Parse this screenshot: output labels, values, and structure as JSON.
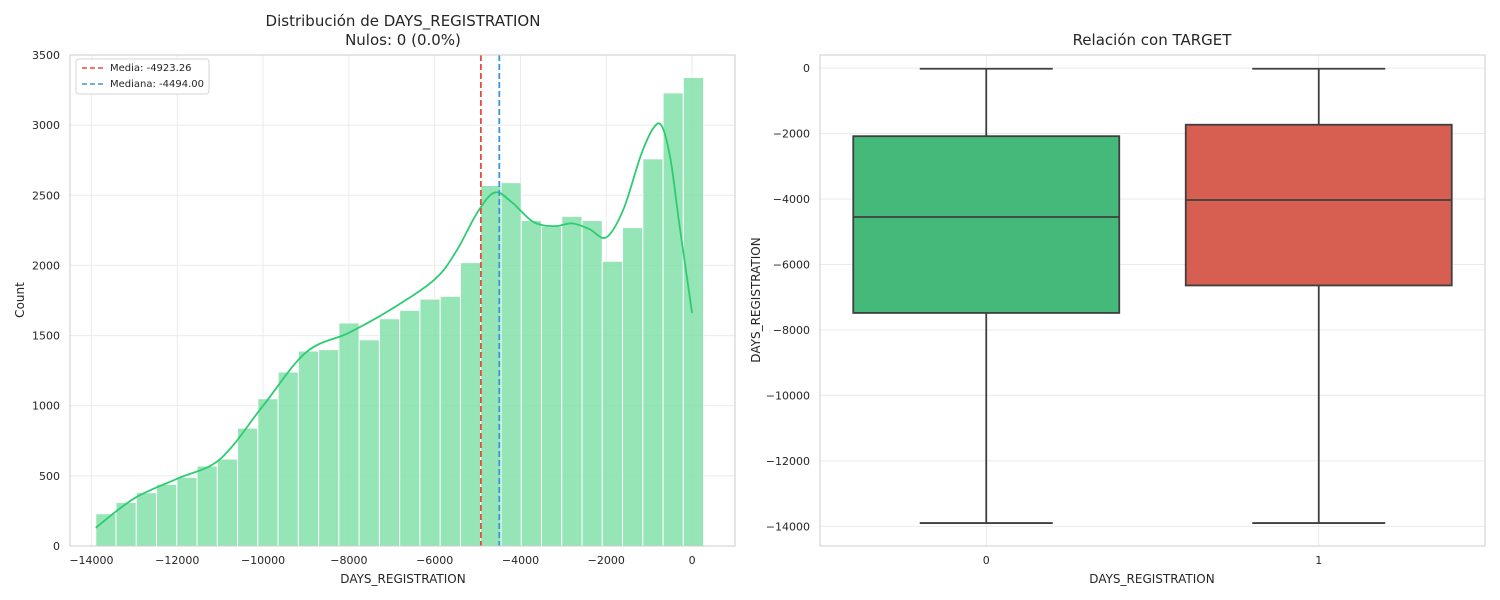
{
  "chart_data": [
    {
      "type": "histogram",
      "title": "Distribución de DAYS_REGISTRATION",
      "subtitle": "Nulos: 0 (0.0%)",
      "xlabel": "DAYS_REGISTRATION",
      "ylabel": "Count",
      "xlim": [
        -14500,
        1000
      ],
      "ylim": [
        0,
        3500
      ],
      "xticks": [
        -14000,
        -12000,
        -10000,
        -8000,
        -6000,
        -4000,
        -2000,
        0
      ],
      "yticks": [
        0,
        500,
        1000,
        1500,
        2000,
        2500,
        3000,
        3500
      ],
      "grid": true,
      "bar_color": "#82e0aa",
      "kde_color": "#2ecc71",
      "bin_edges": [
        -13900,
        -13428,
        -12955,
        -12483,
        -12011,
        -11539,
        -11066,
        -10594,
        -10122,
        -9649,
        -9177,
        -8705,
        -8233,
        -7760,
        -7288,
        -6816,
        -6344,
        -5871,
        -5399,
        -4927,
        -4454,
        -3982,
        -3510,
        -3038,
        -2565,
        -2093,
        -1621,
        -1148,
        -676,
        -204
      ],
      "counts": [
        230,
        310,
        380,
        440,
        490,
        570,
        620,
        840,
        1050,
        1240,
        1390,
        1400,
        1590,
        1470,
        1620,
        1680,
        1760,
        1780,
        2020,
        2570,
        2590,
        2320,
        2280,
        2350,
        2320,
        2030,
        2270,
        2760,
        3230,
        3340
      ],
      "kde_x": [
        -13900,
        -13000,
        -12000,
        -11000,
        -10000,
        -9000,
        -8000,
        -7000,
        -6000,
        -5500,
        -5000,
        -4600,
        -4200,
        -3700,
        -3200,
        -2800,
        -2400,
        -2000,
        -1600,
        -1200,
        -900,
        -700,
        -500,
        -300,
        0
      ],
      "kde_y": [
        130,
        340,
        480,
        620,
        1000,
        1380,
        1520,
        1690,
        1900,
        2100,
        2380,
        2520,
        2450,
        2310,
        2280,
        2300,
        2260,
        2200,
        2400,
        2780,
        2980,
        2990,
        2750,
        2300,
        1660
      ],
      "lines": [
        {
          "name": "Media: -4923.26",
          "x": -4923.26,
          "color": "#e74c3c"
        },
        {
          "name": "Mediana: -4494.00",
          "x": -4494.0,
          "color": "#3498db"
        }
      ],
      "legend": "upper-left"
    },
    {
      "type": "boxplot",
      "title": "Relación con TARGET",
      "xlabel": "DAYS_REGISTRATION",
      "ylabel": "DAYS_REGISTRATION",
      "categories": [
        "0",
        "1"
      ],
      "ylim": [
        -14600,
        400
      ],
      "yticks": [
        0,
        -2000,
        -4000,
        -6000,
        -8000,
        -10000,
        -12000,
        -14000
      ],
      "grid": true,
      "boxes": [
        {
          "category": "0",
          "whisker_low": -13900,
          "q1": -7480,
          "median": -4550,
          "q3": -2080,
          "whisker_high": -20,
          "color": "#45b97a"
        },
        {
          "category": "1",
          "whisker_low": -13900,
          "q1": -6640,
          "median": -4030,
          "q3": -1730,
          "whisker_high": -20,
          "color": "#d65f52"
        }
      ]
    }
  ]
}
